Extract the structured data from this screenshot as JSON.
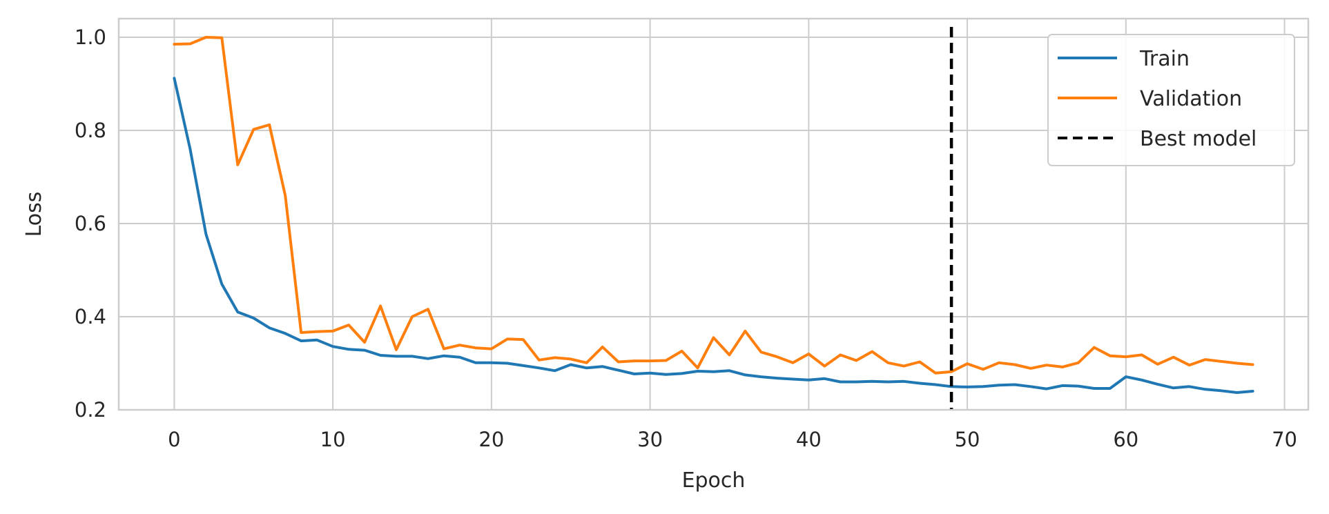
{
  "chart_data": {
    "type": "line",
    "xlabel": "Epoch",
    "ylabel": "Loss",
    "xlim": [
      -3.5,
      71.5
    ],
    "ylim": [
      0.2,
      1.04
    ],
    "xticks": [
      0,
      10,
      20,
      30,
      40,
      50,
      60,
      70
    ],
    "yticks": [
      0.2,
      0.4,
      0.6,
      0.8,
      1.0
    ],
    "xtick_labels": [
      "0",
      "10",
      "20",
      "30",
      "40",
      "50",
      "60",
      "70"
    ],
    "ytick_labels": [
      "0.2",
      "0.4",
      "0.6",
      "0.8",
      "1.0"
    ],
    "grid": true,
    "legend_position": "top-right",
    "legend": [
      "Train",
      "Validation",
      "Best model"
    ],
    "series": [
      {
        "name": "Train",
        "color": "#1f77b4",
        "values": [
          0.912,
          0.76,
          0.577,
          0.47,
          0.41,
          0.397,
          0.376,
          0.364,
          0.348,
          0.35,
          0.336,
          0.33,
          0.328,
          0.317,
          0.315,
          0.315,
          0.31,
          0.316,
          0.313,
          0.301,
          0.301,
          0.3,
          0.295,
          0.29,
          0.284,
          0.297,
          0.29,
          0.293,
          0.285,
          0.277,
          0.279,
          0.276,
          0.278,
          0.283,
          0.282,
          0.284,
          0.275,
          0.271,
          0.268,
          0.266,
          0.264,
          0.267,
          0.26,
          0.26,
          0.261,
          0.26,
          0.261,
          0.257,
          0.254,
          0.25,
          0.249,
          0.25,
          0.253,
          0.254,
          0.25,
          0.245,
          0.252,
          0.251,
          0.246,
          0.246,
          0.271,
          0.264,
          0.255,
          0.247,
          0.25,
          0.244,
          0.241,
          0.237,
          0.24
        ]
      },
      {
        "name": "Validation",
        "color": "#ff7f0e",
        "values": [
          0.985,
          0.986,
          1.0,
          0.999,
          0.726,
          0.802,
          0.812,
          0.66,
          0.366,
          0.368,
          0.369,
          0.382,
          0.345,
          0.423,
          0.329,
          0.4,
          0.416,
          0.331,
          0.339,
          0.333,
          0.331,
          0.352,
          0.351,
          0.307,
          0.312,
          0.309,
          0.301,
          0.335,
          0.303,
          0.305,
          0.305,
          0.306,
          0.326,
          0.29,
          0.355,
          0.318,
          0.369,
          0.324,
          0.314,
          0.301,
          0.32,
          0.294,
          0.318,
          0.306,
          0.325,
          0.301,
          0.294,
          0.303,
          0.279,
          0.282,
          0.299,
          0.287,
          0.301,
          0.297,
          0.289,
          0.296,
          0.292,
          0.301,
          0.334,
          0.316,
          0.314,
          0.318,
          0.298,
          0.313,
          0.296,
          0.308,
          0.304,
          0.3,
          0.297
        ]
      }
    ],
    "vline": {
      "name": "Best model",
      "x": 49,
      "color": "#000000",
      "style": "dashed"
    }
  }
}
